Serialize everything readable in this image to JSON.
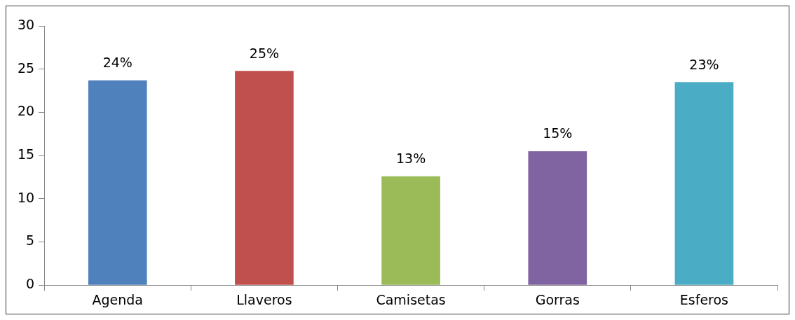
{
  "chart_data": {
    "type": "bar",
    "categories": [
      "Agenda",
      "Llaveros",
      "Camisetas",
      "Gorras",
      "Esferos"
    ],
    "values": [
      23.7,
      24.8,
      12.6,
      15.5,
      23.5
    ],
    "colors": [
      "#4f81bd",
      "#c0504d",
      "#9bbb59",
      "#8064a2",
      "#4bacc6"
    ],
    "value_labels": [
      "24%",
      "25%",
      "13%",
      "15%",
      "23%"
    ],
    "ylim": [
      0,
      30
    ],
    "yticks": [
      0,
      5,
      10,
      15,
      20,
      25,
      30
    ],
    "grid": false,
    "legend": false
  }
}
